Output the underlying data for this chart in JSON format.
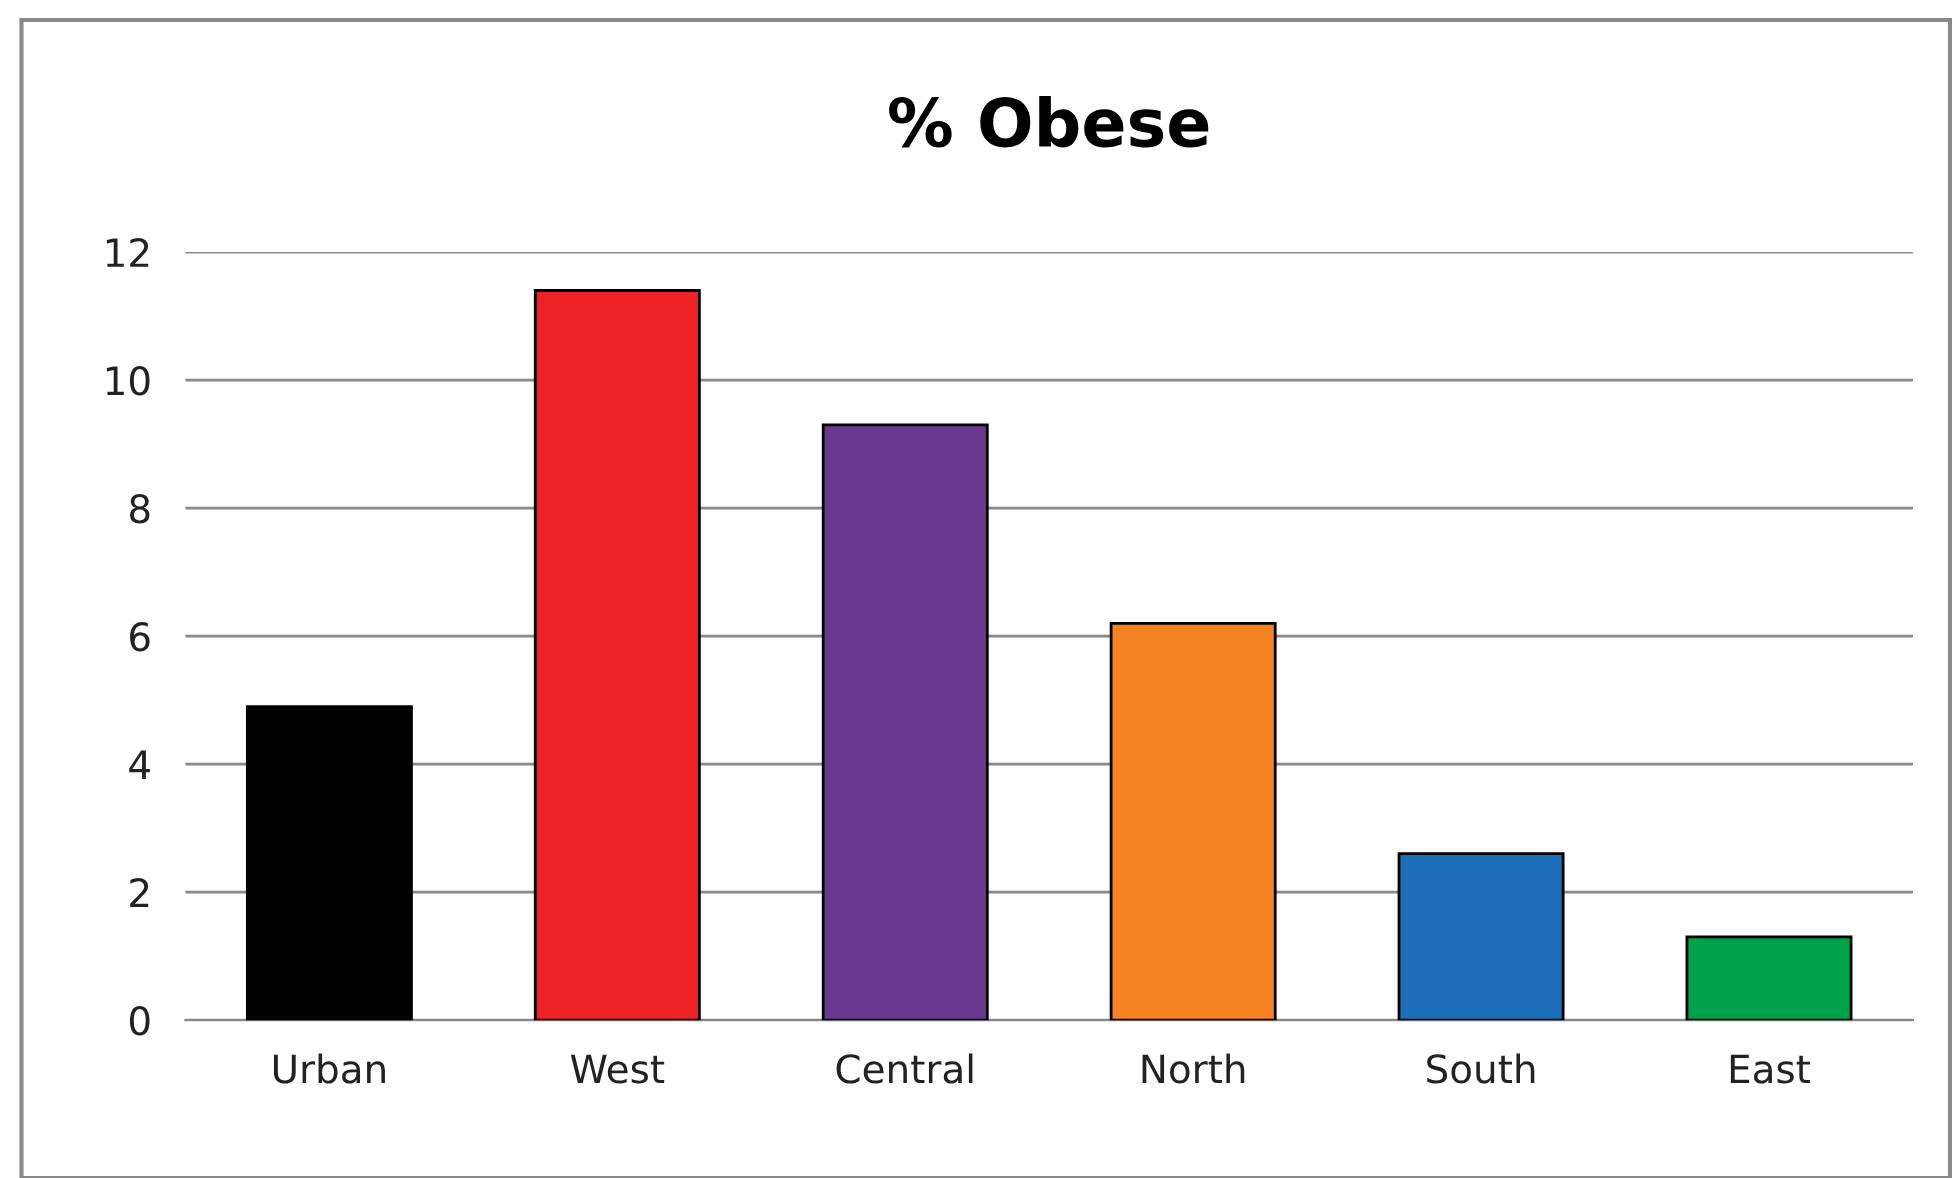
{
  "chart_data": {
    "type": "bar",
    "title": "% Obese",
    "categories": [
      "Urban",
      "West",
      "Central",
      "North",
      "South",
      "East"
    ],
    "values": [
      4.9,
      11.4,
      9.3,
      6.2,
      2.6,
      1.3
    ],
    "colors": [
      "#000000",
      "#ed2224",
      "#6a3a93",
      "#f58220",
      "#1b6fb8",
      "#00a14b"
    ],
    "ylim": [
      0,
      12
    ],
    "yticks": [
      0,
      2,
      4,
      6,
      8,
      10,
      12
    ],
    "grid": "y",
    "legend": false
  }
}
